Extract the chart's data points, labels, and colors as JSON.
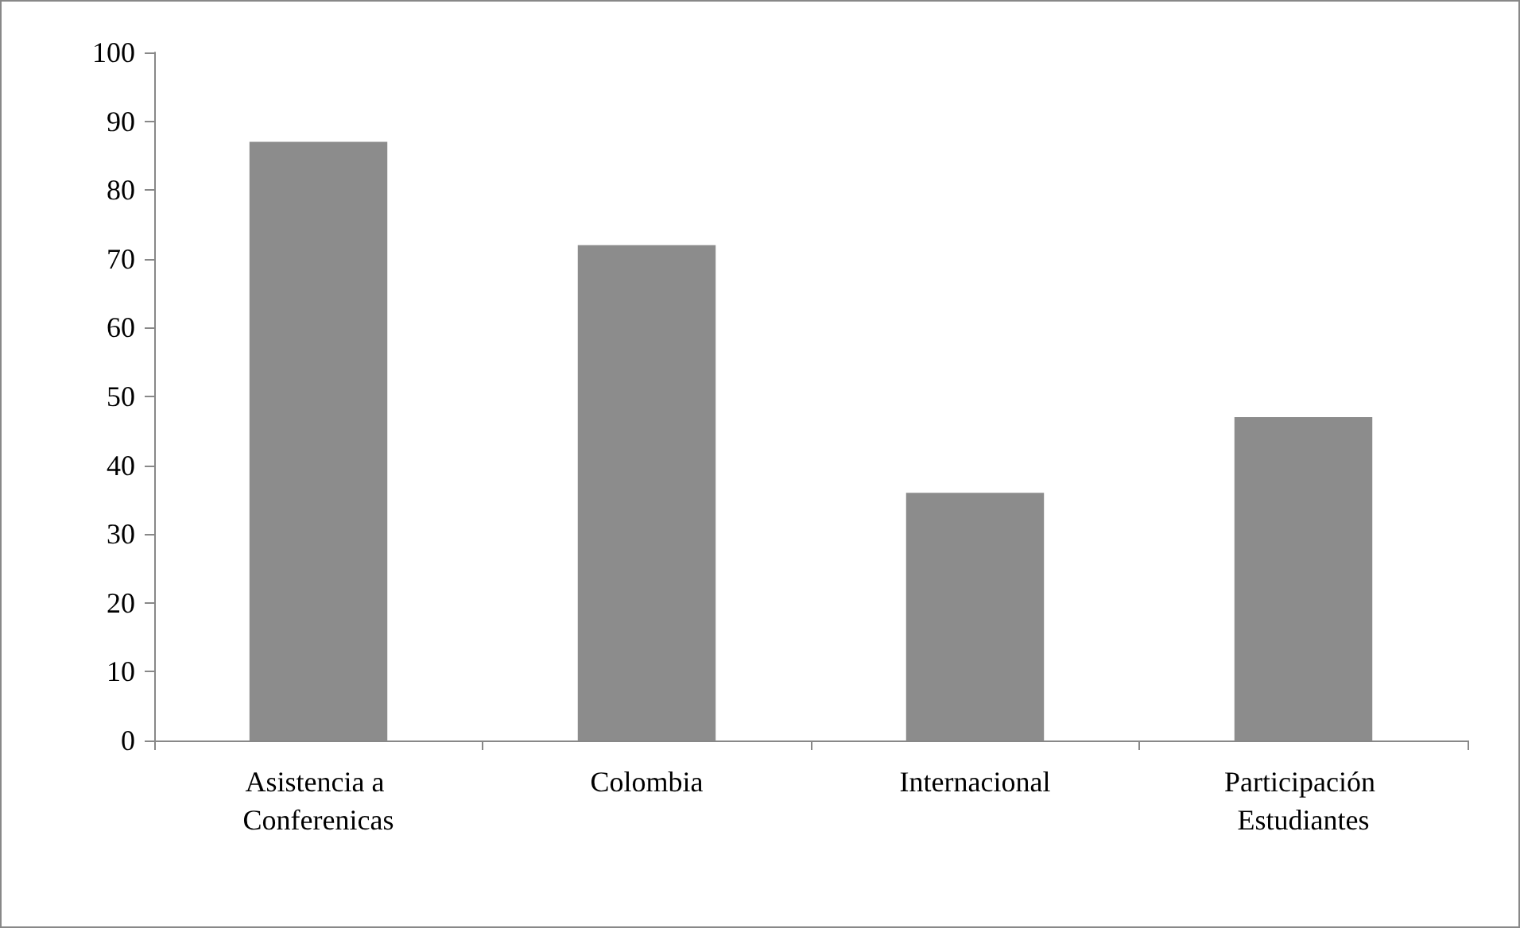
{
  "chart_data": {
    "type": "bar",
    "categories": [
      "Asistencia a Conferenicas",
      "Colombia",
      "Internacional",
      "Participación Estudiantes"
    ],
    "values": [
      87,
      72,
      36,
      47
    ],
    "color": "#8c8c8c",
    "ylim": [
      0,
      100
    ],
    "yticks": [
      0,
      10,
      20,
      30,
      40,
      50,
      60,
      70,
      80,
      90,
      100
    ],
    "grid": false
  }
}
